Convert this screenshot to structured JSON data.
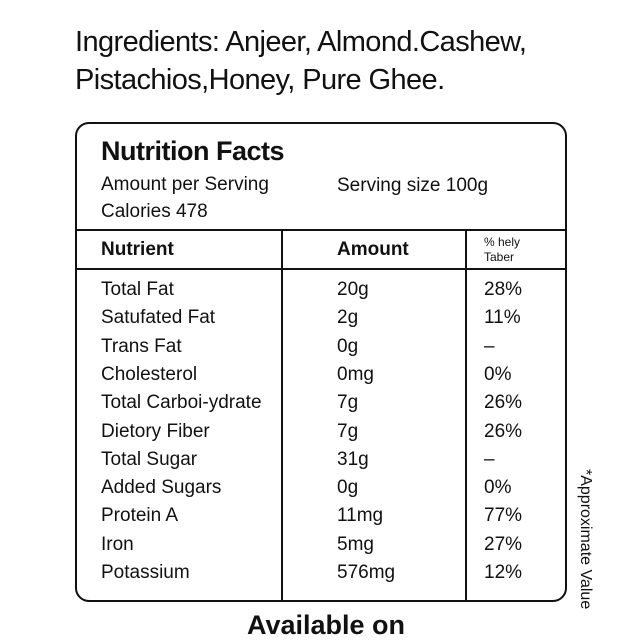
{
  "ingredients": {
    "lines": [
      "Ingredients: Anjeer, Almond.Cashew,",
      "Pistachios,Honey, Pure Ghee."
    ]
  },
  "label": {
    "title": "Nutrition Facts",
    "amount_per_serving": "Amount per Serving",
    "serving_size": "Serving size 100g",
    "calories": "Calories 478",
    "columns": [
      "Nutrient",
      "Amount"
    ],
    "percent_header": [
      "% hely",
      "Taber"
    ],
    "rows": [
      [
        "Total Fat",
        "20g",
        "28%"
      ],
      [
        "Satufated Fat",
        "2g",
        "11%"
      ],
      [
        "Trans Fat",
        "0g",
        "–"
      ],
      [
        "Cholesterol",
        "0mg",
        "0%"
      ],
      [
        "Total Carboi-ydrate",
        "7g",
        "26%"
      ],
      [
        "Dietory Fiber",
        "7g",
        "26%"
      ],
      [
        "Total Sugar",
        "31g",
        "–"
      ],
      [
        "Added Sugars",
        "0g",
        "0%"
      ],
      [
        "Protein A",
        "11mg",
        "77%"
      ],
      [
        "Iron",
        "5mg",
        "27%"
      ],
      [
        "Potassium",
        "576mg",
        "12%"
      ]
    ]
  },
  "footnote": "*Approximate Value",
  "footer": "Available on"
}
